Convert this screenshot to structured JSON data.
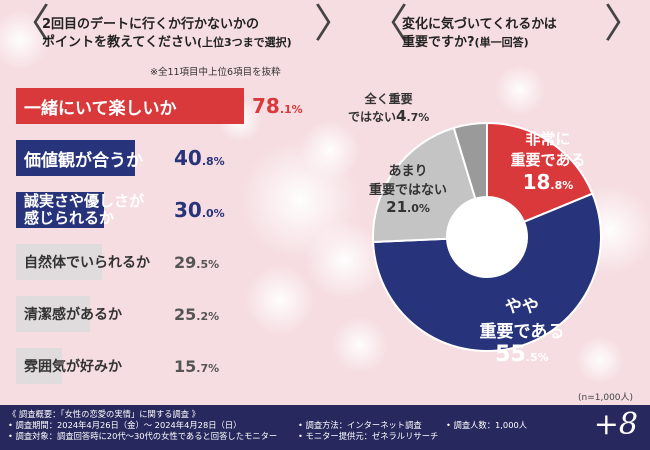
{
  "left_header": {
    "line1": "2回目のデートに行くか行かないかの",
    "line2": "ポイントを教えてください",
    "line2_paren": "(上位3つまで選択)",
    "note": "※全11項目中上位6項目を抜粋"
  },
  "right_header": {
    "line1": "変化に気づいてくれるかは",
    "line2": "重要ですか?",
    "line2_paren": "(単一回答)"
  },
  "chart_data": [
    {
      "type": "bar",
      "title": "2回目のデートに行くか行かないかのポイントを教えてください(上位3つまで選択)",
      "categories": [
        "一緒にいて楽しいか",
        "価値観が合うか",
        "誠実さや優しさが感じられるか",
        "自然体でいられるか",
        "清潔感があるか",
        "雰囲気が好みか"
      ],
      "category_lines": [
        [
          "一緒にいて楽しいか"
        ],
        [
          "価値観が合うか"
        ],
        [
          "誠実さや優しさが",
          "感じられるか"
        ],
        [
          "自然体でいられるか"
        ],
        [
          "清潔感があるか"
        ],
        [
          "雰囲気が好みか"
        ]
      ],
      "values": [
        78.1,
        40.8,
        30.0,
        29.5,
        25.2,
        15.7
      ],
      "value_labels": [
        [
          "78",
          ".1%"
        ],
        [
          "40",
          ".8%"
        ],
        [
          "30",
          ".0%"
        ],
        [
          "29",
          ".5%"
        ],
        [
          "25",
          ".2%"
        ],
        [
          "15",
          ".7%"
        ]
      ],
      "colors": [
        "#d9393b",
        "#27337a",
        "#27337a",
        "#dcdcdc",
        "#dcdcdc",
        "#dcdcdc"
      ],
      "note": "※全11項目中上位6項目を抜粋"
    },
    {
      "type": "pie",
      "title": "変化に気づいてくれるかは重要ですか?(単一回答)",
      "categories": [
        "非常に重要である",
        "やや重要である",
        "あまり重要ではない",
        "全く重要ではない"
      ],
      "label_lines": [
        [
          "非常に",
          "重要である"
        ],
        [
          "やや",
          "重要である"
        ],
        [
          "あまり",
          "重要ではない"
        ],
        [
          "全く重要",
          "ではない"
        ]
      ],
      "values": [
        18.8,
        55.5,
        21.0,
        4.7
      ],
      "value_labels": [
        [
          "18",
          ".8%"
        ],
        [
          "55",
          ".5%"
        ],
        [
          "21",
          ".0%"
        ],
        [
          "4",
          ".7%"
        ]
      ],
      "colors": [
        "#d9393b",
        "#27337a",
        "#c4c4c4",
        "#9a9a9a"
      ],
      "note": "(n=1,000人)"
    }
  ],
  "footer": {
    "lines": [
      "《 調査概要：「女性の恋愛の実情」に関する調査 》",
      "• 調査期間：2024年4月26日（金）～ 2024年4月28日（日）",
      "• 調査対象：調査回答時に20代～30代の女性であると回答したモニター"
    ],
    "method": "• 調査方法：インターネット調査",
    "respondents": "• 調査人数：1,000人",
    "provider": "• モニター提供元：ゼネラルリサーチ",
    "logo": "+8"
  }
}
